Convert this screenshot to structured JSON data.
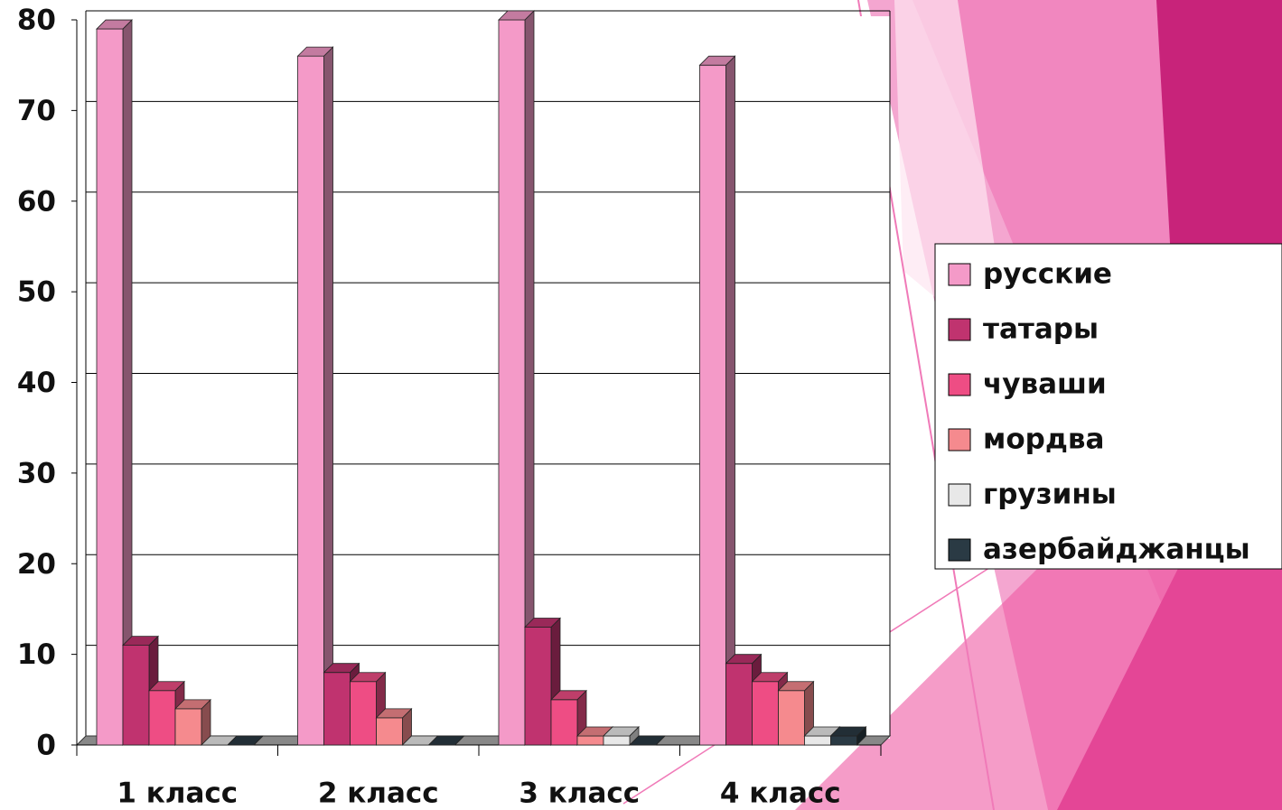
{
  "chart_data": {
    "type": "bar3d",
    "categories": [
      "1 класс",
      "2 класс",
      "3 класс",
      "4 класс"
    ],
    "series": [
      {
        "name": "русские",
        "color": "#f49ac8",
        "values": [
          79,
          76,
          80,
          75
        ]
      },
      {
        "name": "татары",
        "color": "#c0336f",
        "values": [
          11,
          8,
          13,
          9
        ]
      },
      {
        "name": "чуваши",
        "color": "#ee4d84",
        "values": [
          6,
          7,
          5,
          7
        ]
      },
      {
        "name": "мордва",
        "color": "#f58a8e",
        "values": [
          4,
          3,
          1,
          6
        ]
      },
      {
        "name": "грузины",
        "color": "#e8e8e8",
        "values": [
          0,
          0,
          1,
          1
        ]
      },
      {
        "name": "азербайджанцы",
        "color": "#2a3a44",
        "values": [
          0,
          0,
          0,
          1
        ]
      }
    ],
    "ylim": [
      0,
      80
    ],
    "yticks": [
      0,
      10,
      20,
      30,
      40,
      50,
      60,
      70,
      80
    ],
    "grid": true,
    "legend": "right"
  }
}
